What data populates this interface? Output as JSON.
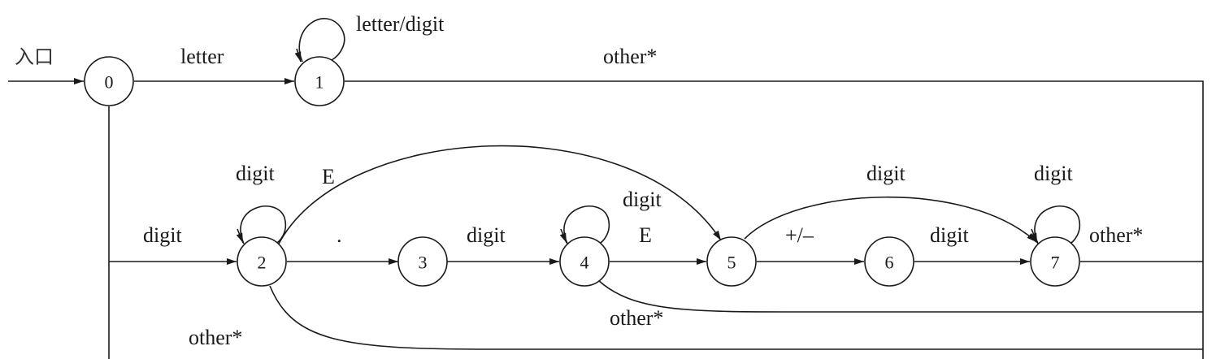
{
  "entry_label": "入口",
  "states": [
    {
      "id": "0",
      "label": "0"
    },
    {
      "id": "1",
      "label": "1"
    },
    {
      "id": "2",
      "label": "2"
    },
    {
      "id": "3",
      "label": "3"
    },
    {
      "id": "4",
      "label": "4"
    },
    {
      "id": "5",
      "label": "5"
    },
    {
      "id": "6",
      "label": "6"
    },
    {
      "id": "7",
      "label": "7"
    }
  ],
  "transitions": [
    {
      "id": "t0_1",
      "from": "0",
      "to": "1",
      "label": "letter"
    },
    {
      "id": "t1_1",
      "from": "1",
      "to": "1",
      "label": "letter/digit"
    },
    {
      "id": "t1_out",
      "from": "1",
      "to": "out",
      "label": "other*"
    },
    {
      "id": "t0_2",
      "from": "0",
      "to": "2",
      "label": "digit"
    },
    {
      "id": "t2_2",
      "from": "2",
      "to": "2",
      "label": "digit"
    },
    {
      "id": "t2_5",
      "from": "2",
      "to": "5",
      "label": "E"
    },
    {
      "id": "t2_3",
      "from": "2",
      "to": "3",
      "label": "."
    },
    {
      "id": "t3_4",
      "from": "3",
      "to": "4",
      "label": "digit"
    },
    {
      "id": "t4_4",
      "from": "4",
      "to": "4",
      "label": "digit"
    },
    {
      "id": "t4_5",
      "from": "4",
      "to": "5",
      "label": "E"
    },
    {
      "id": "t5_6",
      "from": "5",
      "to": "6",
      "label": "+/–"
    },
    {
      "id": "t5_7",
      "from": "5",
      "to": "7",
      "label": "digit"
    },
    {
      "id": "t6_7",
      "from": "6",
      "to": "7",
      "label": "digit"
    },
    {
      "id": "t7_7",
      "from": "7",
      "to": "7",
      "label": "digit"
    },
    {
      "id": "t7_out",
      "from": "7",
      "to": "out",
      "label": "other*"
    },
    {
      "id": "t4_out",
      "from": "4",
      "to": "out",
      "label": "other*"
    },
    {
      "id": "t2_out",
      "from": "2",
      "to": "out",
      "label": "other*"
    }
  ]
}
